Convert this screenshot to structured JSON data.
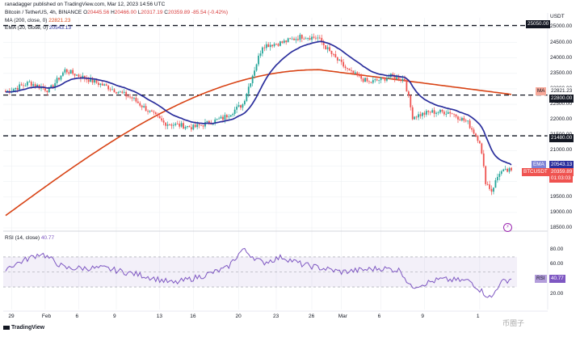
{
  "header": {
    "user": "ranadagger",
    "published": "published on TradingView.com, Mar 12, 2023 14:56 UTC",
    "symbol": "Bitcoin / TetherUS, 4h, BINANCE",
    "o_label": "O",
    "o": "20445.56",
    "h_label": "H",
    "h": "20466.00",
    "l_label": "L",
    "l": "20317.19",
    "c_label": "C",
    "c": "20359.89",
    "change": "-85.54 (-0.42%)",
    "ma_label": "MA (200, close, 0)",
    "ma_value": "22821.23",
    "ema_label": "EMA (20, close, 0)",
    "ema_value": "20543.13"
  },
  "price_axis": {
    "currency": "USDT",
    "ticks": [
      "25000.00",
      "24500.00",
      "24000.00",
      "23500.00",
      "23000.00",
      "22500.00",
      "22000.00",
      "21500.00",
      "21000.00",
      "20500.00",
      "20000.00",
      "19500.00",
      "19000.00",
      "18500.00"
    ]
  },
  "badges": {
    "top": "25050.00",
    "ma_tag": "MA",
    "ma": "22821.23",
    "level_22800": "22800.00",
    "level_21480": "21480.00",
    "ema_tag": "EMA",
    "ema": "20543.13",
    "symbol_tag": "BTCUSDT",
    "price": "20359.89",
    "countdown": "01:03:03"
  },
  "rsi": {
    "label": "RSI (14, close)",
    "value": "40.77",
    "tag": "RSI",
    "tag_value": "40.77",
    "ticks": [
      "80.00",
      "60.00",
      "40.00",
      "20.00"
    ]
  },
  "x_axis": {
    "labels": [
      "29",
      "Feb",
      "6",
      "9",
      "13",
      "16",
      "20",
      "23",
      "26",
      "Mar",
      "6",
      "9",
      "1"
    ]
  },
  "footer": {
    "logo": "TradingView",
    "watermark": "币圈子"
  },
  "colors": {
    "up": "#26a69a",
    "down": "#ef5350",
    "ema": "#2a2e9c",
    "ma": "#d84315",
    "rsi": "#7e57c2",
    "level": "#131722"
  },
  "chart_data": {
    "type": "candlestick",
    "symbol": "BTCUSDT",
    "interval": "4h",
    "x_labels": [
      "29",
      "Feb",
      "6",
      "9",
      "13",
      "16",
      "20",
      "23",
      "26",
      "Mar",
      "6",
      "9",
      "1"
    ],
    "ylim": [
      18500,
      25300
    ],
    "horizontal_levels": [
      25050,
      22800,
      21480
    ],
    "last": {
      "open": 20445.56,
      "high": 20466.0,
      "low": 20317.19,
      "close": 20359.89
    },
    "ema20_last": 20543.13,
    "ma200_last": 22821.23,
    "rsi14_last": 40.77,
    "rsi_ylim": [
      0,
      100
    ],
    "rsi_band": [
      30,
      70
    ],
    "anchors": [
      {
        "i": 0,
        "p": 22900
      },
      {
        "i": 12,
        "p": 23200
      },
      {
        "i": 22,
        "p": 22950
      },
      {
        "i": 30,
        "p": 23600
      },
      {
        "i": 40,
        "p": 23350
      },
      {
        "i": 52,
        "p": 23050
      },
      {
        "i": 64,
        "p": 22700
      },
      {
        "i": 80,
        "p": 21900
      },
      {
        "i": 95,
        "p": 21750
      },
      {
        "i": 110,
        "p": 22050
      },
      {
        "i": 120,
        "p": 22500
      },
      {
        "i": 130,
        "p": 24400
      },
      {
        "i": 140,
        "p": 24500
      },
      {
        "i": 150,
        "p": 24700
      },
      {
        "i": 158,
        "p": 24650
      },
      {
        "i": 166,
        "p": 24050
      },
      {
        "i": 174,
        "p": 23550
      },
      {
        "i": 184,
        "p": 23200
      },
      {
        "i": 195,
        "p": 23400
      },
      {
        "i": 202,
        "p": 23300
      },
      {
        "i": 206,
        "p": 22100
      },
      {
        "i": 215,
        "p": 22250
      },
      {
        "i": 225,
        "p": 22250
      },
      {
        "i": 234,
        "p": 21900
      },
      {
        "i": 240,
        "p": 21300
      },
      {
        "i": 243,
        "p": 20000
      },
      {
        "i": 246,
        "p": 19700
      },
      {
        "i": 250,
        "p": 20300
      },
      {
        "i": 256,
        "p": 20360
      }
    ],
    "rsi_anchors": [
      {
        "i": 0,
        "v": 55
      },
      {
        "i": 18,
        "v": 75
      },
      {
        "i": 30,
        "v": 55
      },
      {
        "i": 50,
        "v": 55
      },
      {
        "i": 70,
        "v": 45
      },
      {
        "i": 85,
        "v": 35
      },
      {
        "i": 100,
        "v": 45
      },
      {
        "i": 112,
        "v": 55
      },
      {
        "i": 120,
        "v": 80
      },
      {
        "i": 130,
        "v": 62
      },
      {
        "i": 140,
        "v": 70
      },
      {
        "i": 150,
        "v": 60
      },
      {
        "i": 170,
        "v": 50
      },
      {
        "i": 190,
        "v": 55
      },
      {
        "i": 200,
        "v": 52
      },
      {
        "i": 205,
        "v": 30
      },
      {
        "i": 220,
        "v": 40
      },
      {
        "i": 235,
        "v": 38
      },
      {
        "i": 243,
        "v": 20
      },
      {
        "i": 246,
        "v": 15
      },
      {
        "i": 250,
        "v": 35
      },
      {
        "i": 256,
        "v": 41
      }
    ]
  }
}
